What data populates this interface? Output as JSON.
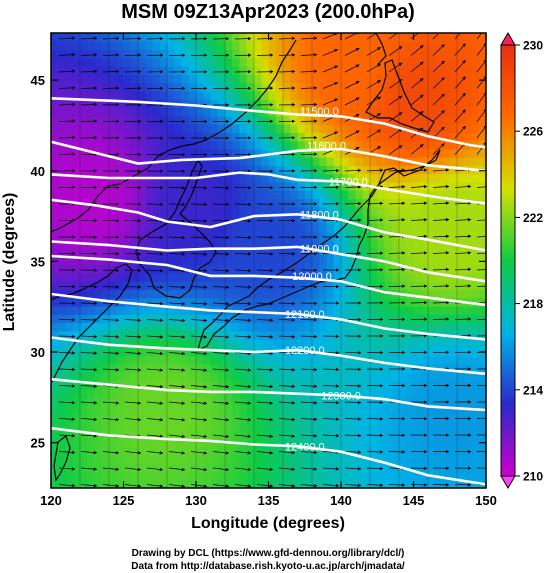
{
  "chart_data": {
    "type": "heatmap",
    "title": "MSM 09Z13Apr2023 (200.0hPa)",
    "xlabel": "Longitude (degrees)",
    "ylabel": "Latitude  (degrees)",
    "xlim": [
      120,
      150
    ],
    "ylim": [
      22.5,
      47.6
    ],
    "x_ticks": [
      120,
      125,
      130,
      135,
      140,
      145,
      150
    ],
    "y_ticks": [
      25,
      30,
      35,
      40,
      45
    ],
    "colorbar": {
      "min": 210,
      "max": 230,
      "ticks": [
        210,
        214,
        218,
        222,
        226,
        230
      ],
      "colors": [
        "#cc00cc",
        "#2a2acc",
        "#00b4e6",
        "#10cc44",
        "#d4e000",
        "#ff6a00",
        "#e83010"
      ]
    },
    "temperature_centers": [
      {
        "lon": 123.0,
        "lat": 38.5,
        "value": 210.5
      },
      {
        "lon": 130.0,
        "lat": 38.0,
        "value": 213.0
      },
      {
        "lon": 135.0,
        "lat": 36.0,
        "value": 214.0
      },
      {
        "lon": 145.0,
        "lat": 44.0,
        "value": 228.5
      },
      {
        "lon": 141.0,
        "lat": 45.5,
        "value": 227.0
      },
      {
        "lon": 148.0,
        "lat": 27.0,
        "value": 216.0
      },
      {
        "lon": 128.0,
        "lat": 27.0,
        "value": 221.5
      },
      {
        "lon": 147.5,
        "lat": 36.5,
        "value": 222.5
      }
    ],
    "contours": [
      {
        "label": "11500.0",
        "label_pos": [
          138.5,
          43.3
        ],
        "points": [
          [
            120,
            44.0
          ],
          [
            126,
            43.8
          ],
          [
            130,
            43.6
          ],
          [
            134,
            43.3
          ],
          [
            137,
            43.1
          ],
          [
            140,
            43.0
          ],
          [
            143,
            42.6
          ],
          [
            146,
            41.9
          ],
          [
            149,
            41.4
          ],
          [
            150,
            41.3
          ]
        ]
      },
      {
        "label": "11600.0",
        "label_pos": [
          139.0,
          41.4
        ],
        "points": [
          [
            120,
            41.6
          ],
          [
            123,
            41.0
          ],
          [
            126,
            40.4
          ],
          [
            129,
            40.6
          ],
          [
            133,
            40.7
          ],
          [
            135,
            40.9
          ],
          [
            137,
            41.1
          ],
          [
            140,
            41.2
          ],
          [
            143,
            40.8
          ],
          [
            146,
            40.3
          ],
          [
            150,
            40.0
          ]
        ]
      },
      {
        "label": "11700.0",
        "label_pos": [
          140.5,
          39.4
        ],
        "points": [
          [
            120,
            39.8
          ],
          [
            124,
            39.6
          ],
          [
            127,
            39.6
          ],
          [
            130,
            39.6
          ],
          [
            133,
            39.9
          ],
          [
            135,
            39.8
          ],
          [
            137,
            39.5
          ],
          [
            140,
            39.4
          ],
          [
            143,
            39.0
          ],
          [
            147,
            38.5
          ],
          [
            150,
            38.2
          ]
        ]
      },
      {
        "label": "11800.0",
        "label_pos": [
          138.5,
          37.6
        ],
        "points": [
          [
            120,
            38.4
          ],
          [
            123,
            38.1
          ],
          [
            126,
            37.7
          ],
          [
            128,
            37.2
          ],
          [
            131,
            36.9
          ],
          [
            134,
            37.5
          ],
          [
            137,
            37.6
          ],
          [
            140,
            37.3
          ],
          [
            143,
            36.6
          ],
          [
            146,
            36.2
          ],
          [
            150,
            35.6
          ]
        ]
      },
      {
        "label": "11900.0",
        "label_pos": [
          138.5,
          35.7
        ],
        "points": [
          [
            120,
            36.1
          ],
          [
            124,
            35.9
          ],
          [
            128,
            35.6
          ],
          [
            131,
            35.7
          ],
          [
            134,
            35.7
          ],
          [
            137,
            35.8
          ],
          [
            140,
            35.4
          ],
          [
            143,
            35.0
          ],
          [
            146,
            34.4
          ],
          [
            150,
            33.9
          ]
        ]
      },
      {
        "label": "12000.0",
        "label_pos": [
          138.0,
          34.2
        ],
        "points": [
          [
            120,
            35.3
          ],
          [
            124,
            35.1
          ],
          [
            128,
            34.8
          ],
          [
            131,
            34.2
          ],
          [
            134,
            34.2
          ],
          [
            137,
            34.1
          ],
          [
            140,
            33.9
          ],
          [
            143,
            33.3
          ],
          [
            146,
            33.0
          ],
          [
            150,
            32.6
          ]
        ]
      },
      {
        "label": "12100.0",
        "label_pos": [
          137.5,
          32.1
        ],
        "points": [
          [
            120,
            33.2
          ],
          [
            124,
            32.8
          ],
          [
            128,
            32.5
          ],
          [
            131,
            32.3
          ],
          [
            134,
            32.2
          ],
          [
            137,
            32.1
          ],
          [
            140,
            31.8
          ],
          [
            143,
            31.3
          ],
          [
            146,
            31.0
          ],
          [
            150,
            30.7
          ]
        ]
      },
      {
        "label": "12200.0",
        "label_pos": [
          137.5,
          30.1
        ],
        "points": [
          [
            120,
            30.8
          ],
          [
            124,
            30.4
          ],
          [
            128,
            30.2
          ],
          [
            131,
            30.1
          ],
          [
            134,
            30.0
          ],
          [
            137,
            30.1
          ],
          [
            140,
            29.8
          ],
          [
            143,
            29.4
          ],
          [
            146,
            29.1
          ],
          [
            150,
            28.8
          ]
        ]
      },
      {
        "label": "12300.0",
        "label_pos": [
          140.0,
          27.6
        ],
        "points": [
          [
            120,
            28.5
          ],
          [
            124,
            28.2
          ],
          [
            128,
            27.9
          ],
          [
            131,
            27.8
          ],
          [
            134,
            27.8
          ],
          [
            137,
            27.7
          ],
          [
            140,
            27.6
          ],
          [
            143,
            27.4
          ],
          [
            146,
            27.0
          ],
          [
            150,
            26.8
          ]
        ]
      },
      {
        "label": "12400.0",
        "label_pos": [
          137.5,
          24.8
        ],
        "points": [
          [
            120,
            25.8
          ],
          [
            124,
            25.4
          ],
          [
            128,
            25.2
          ],
          [
            131,
            25.1
          ],
          [
            134,
            24.9
          ],
          [
            137,
            24.8
          ],
          [
            140,
            24.5
          ],
          [
            143,
            23.9
          ],
          [
            146,
            23.2
          ],
          [
            150,
            22.7
          ]
        ]
      }
    ],
    "credits": [
      "Drawing by DCL (https://www.gfd-dennou.org/library/dcl/)",
      "Data from http://database.rish.kyoto-u.ac.jp/arch/jmadata/"
    ]
  }
}
